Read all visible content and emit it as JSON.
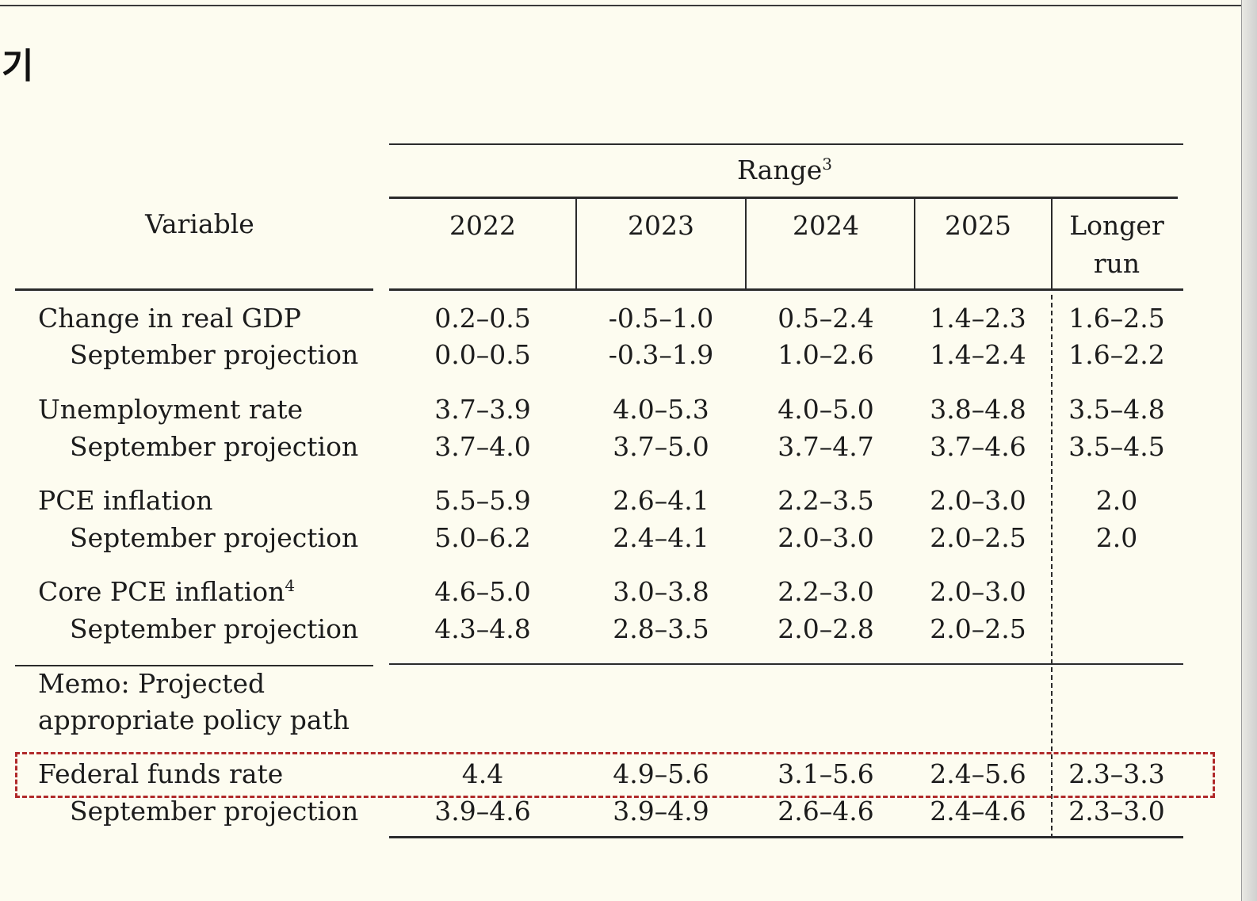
{
  "heading_glyph": "기",
  "table": {
    "variable_header": "Variable",
    "range_header": "Range",
    "range_footnote": "3",
    "year_headers": [
      "2022",
      "2023",
      "2024",
      "2025"
    ],
    "longer_run_line1": "Longer",
    "longer_run_line2": "run",
    "sep_label": "September projection",
    "rows": [
      {
        "label": "Change in real GDP",
        "footnote": "",
        "values": [
          "0.2–0.5",
          "-0.5–1.0",
          "0.5–2.4",
          "1.4–2.3",
          "1.6–2.5"
        ],
        "september": [
          "0.0–0.5",
          "-0.3–1.9",
          "1.0–2.6",
          "1.4–2.4",
          "1.6–2.2"
        ]
      },
      {
        "label": "Unemployment rate",
        "footnote": "",
        "values": [
          "3.7–3.9",
          "4.0–5.3",
          "4.0–5.0",
          "3.8–4.8",
          "3.5–4.8"
        ],
        "september": [
          "3.7–4.0",
          "3.7–5.0",
          "3.7–4.7",
          "3.7–4.6",
          "3.5–4.5"
        ]
      },
      {
        "label": "PCE inflation",
        "footnote": "",
        "values": [
          "5.5–5.9",
          "2.6–4.1",
          "2.2–3.5",
          "2.0–3.0",
          "2.0"
        ],
        "september": [
          "5.0–6.2",
          "2.4–4.1",
          "2.0–3.0",
          "2.0–2.5",
          "2.0"
        ]
      },
      {
        "label": "Core PCE inflation",
        "footnote": "4",
        "values": [
          "4.6–5.0",
          "3.0–3.8",
          "2.2–3.0",
          "2.0–3.0",
          ""
        ],
        "september": [
          "4.3–4.8",
          "2.8–3.5",
          "2.0–2.8",
          "2.0–2.5",
          ""
        ]
      }
    ],
    "memo_line1": "Memo: Projected",
    "memo_line2": "appropriate policy path",
    "ffr": {
      "label": "Federal funds rate",
      "values": [
        "4.4",
        "4.9–5.6",
        "3.1–5.6",
        "2.4–5.6",
        "2.3–3.3"
      ],
      "september": [
        "3.9–4.6",
        "3.9–4.9",
        "2.6–4.6",
        "2.4–4.6",
        "2.3–3.0"
      ]
    }
  },
  "colors": {
    "background": "#fdfcf0",
    "highlight_border": "#b02a2a"
  }
}
